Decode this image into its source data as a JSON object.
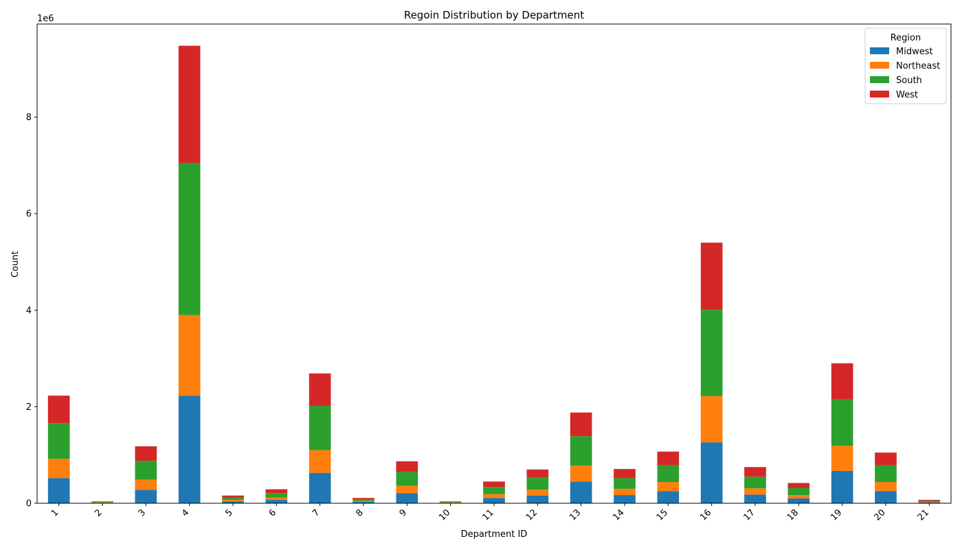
{
  "chart_data": {
    "type": "bar",
    "stacked": true,
    "title": "Regoin Distribution by Department",
    "xlabel": "Department ID",
    "ylabel": "Count",
    "y_multiplier_label": "1e6",
    "ylim": [
      0,
      9.93
    ],
    "y_ticks": [
      0,
      2,
      4,
      6,
      8
    ],
    "grid": false,
    "legend": {
      "title": "Region",
      "placement": "top-right"
    },
    "categories": [
      "1",
      "2",
      "3",
      "4",
      "5",
      "6",
      "7",
      "8",
      "9",
      "10",
      "11",
      "12",
      "13",
      "14",
      "15",
      "16",
      "17",
      "18",
      "19",
      "20",
      "21"
    ],
    "series": [
      {
        "name": "Midwest",
        "color": "#1f77b4",
        "values": [
          0.52,
          0.01,
          0.28,
          2.23,
          0.04,
          0.07,
          0.63,
          0.03,
          0.21,
          0.01,
          0.11,
          0.16,
          0.45,
          0.17,
          0.25,
          1.26,
          0.18,
          0.1,
          0.67,
          0.25,
          0.02
        ]
      },
      {
        "name": "Northeast",
        "color": "#ff7f0e",
        "values": [
          0.4,
          0.01,
          0.21,
          1.67,
          0.03,
          0.05,
          0.47,
          0.02,
          0.15,
          0.01,
          0.08,
          0.12,
          0.33,
          0.13,
          0.19,
          0.96,
          0.13,
          0.07,
          0.52,
          0.19,
          0.01
        ]
      },
      {
        "name": "South",
        "color": "#2ca02c",
        "values": [
          0.74,
          0.01,
          0.39,
          3.15,
          0.05,
          0.09,
          0.92,
          0.03,
          0.29,
          0.01,
          0.15,
          0.25,
          0.61,
          0.22,
          0.35,
          1.79,
          0.24,
          0.15,
          0.96,
          0.35,
          0.02
        ]
      },
      {
        "name": "West",
        "color": "#d62728",
        "values": [
          0.57,
          0.01,
          0.3,
          2.43,
          0.04,
          0.08,
          0.67,
          0.03,
          0.22,
          0.01,
          0.11,
          0.17,
          0.49,
          0.19,
          0.28,
          1.39,
          0.2,
          0.1,
          0.75,
          0.26,
          0.02
        ]
      }
    ]
  }
}
